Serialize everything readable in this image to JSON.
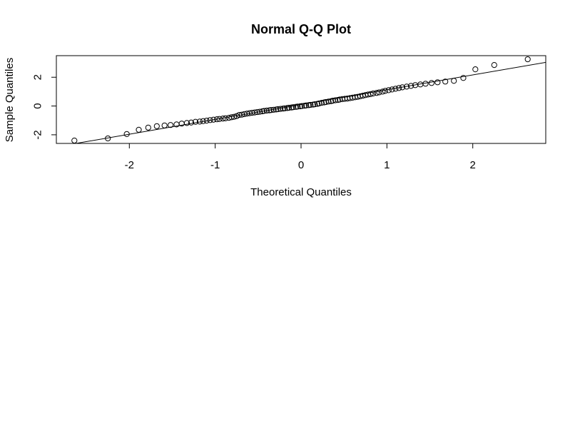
{
  "chart_data": {
    "type": "scatter",
    "title": "Normal Q-Q Plot",
    "xlabel": "Theoretical Quantiles",
    "ylabel": "Sample Quantiles",
    "xlim": [
      -2.85,
      2.85
    ],
    "ylim": [
      -2.6,
      3.5
    ],
    "xticks": [
      -2,
      -1,
      0,
      1,
      2
    ],
    "yticks": [
      -2,
      0,
      2
    ],
    "xtick_labels": [
      "-2",
      "-1",
      "0",
      "1",
      "2"
    ],
    "ytick_labels": [
      "-2",
      "0",
      "2"
    ],
    "grid": false,
    "legend": "none",
    "point_symbol": "open-circle",
    "reference_line": {
      "kind": "qqline",
      "intercept": 0.1,
      "slope": 1.03
    },
    "series": [
      {
        "x": [
          -2.64,
          -2.25,
          -2.03,
          -1.89,
          -1.78,
          -1.68,
          -1.59,
          -1.52,
          -1.45,
          -1.39,
          -1.33,
          -1.28,
          -1.23,
          -1.18,
          -1.14,
          -1.1,
          -1.06,
          -1.02,
          -0.98,
          -0.95,
          -0.91,
          -0.88,
          -0.84,
          -0.81,
          -0.78,
          -0.75,
          -0.72,
          -0.69,
          -0.66,
          -0.63,
          -0.6,
          -0.57,
          -0.54,
          -0.51,
          -0.48,
          -0.45,
          -0.43,
          -0.4,
          -0.37,
          -0.35,
          -0.32,
          -0.29,
          -0.27,
          -0.24,
          -0.21,
          -0.19,
          -0.16,
          -0.14,
          -0.11,
          -0.09,
          -0.06,
          -0.04,
          -0.01,
          0.01,
          0.04,
          0.06,
          0.09,
          0.11,
          0.14,
          0.16,
          0.19,
          0.21,
          0.24,
          0.27,
          0.29,
          0.32,
          0.35,
          0.37,
          0.4,
          0.43,
          0.45,
          0.48,
          0.51,
          0.54,
          0.57,
          0.6,
          0.63,
          0.66,
          0.69,
          0.72,
          0.75,
          0.78,
          0.81,
          0.84,
          0.88,
          0.91,
          0.95,
          0.98,
          1.02,
          1.06,
          1.1,
          1.14,
          1.18,
          1.23,
          1.28,
          1.33,
          1.39,
          1.45,
          1.52,
          1.59,
          1.68,
          1.78,
          1.89,
          2.03,
          2.25,
          2.64
        ],
        "y": [
          -2.4,
          -2.25,
          -1.95,
          -1.65,
          -1.5,
          -1.4,
          -1.35,
          -1.32,
          -1.28,
          -1.22,
          -1.18,
          -1.15,
          -1.1,
          -1.08,
          -1.05,
          -1.02,
          -0.98,
          -0.95,
          -0.92,
          -0.9,
          -0.87,
          -0.85,
          -0.82,
          -0.78,
          -0.75,
          -0.7,
          -0.62,
          -0.6,
          -0.56,
          -0.53,
          -0.5,
          -0.47,
          -0.45,
          -0.42,
          -0.4,
          -0.37,
          -0.34,
          -0.32,
          -0.3,
          -0.28,
          -0.26,
          -0.24,
          -0.22,
          -0.2,
          -0.18,
          -0.16,
          -0.14,
          -0.12,
          -0.1,
          -0.08,
          -0.06,
          -0.04,
          -0.02,
          0.0,
          0.02,
          0.04,
          0.06,
          0.08,
          0.1,
          0.12,
          0.15,
          0.18,
          0.22,
          0.25,
          0.28,
          0.31,
          0.34,
          0.37,
          0.4,
          0.42,
          0.45,
          0.48,
          0.5,
          0.52,
          0.55,
          0.58,
          0.61,
          0.64,
          0.68,
          0.72,
          0.76,
          0.8,
          0.83,
          0.87,
          0.91,
          0.95,
          1.0,
          1.05,
          1.1,
          1.15,
          1.2,
          1.25,
          1.3,
          1.35,
          1.4,
          1.45,
          1.5,
          1.55,
          1.6,
          1.65,
          1.7,
          1.75,
          1.95,
          2.55,
          2.85,
          3.25
        ]
      }
    ]
  }
}
